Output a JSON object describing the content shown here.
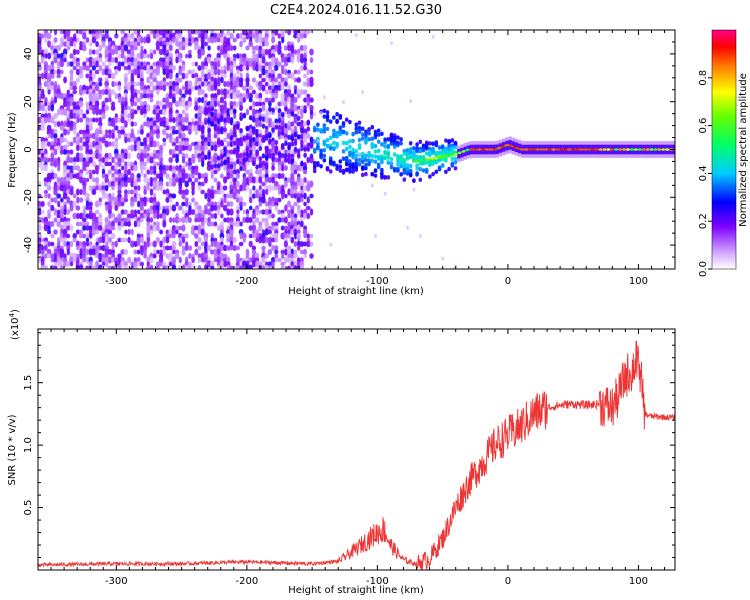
{
  "title": "C2E4.2024.016.11.52.G30",
  "chart_data": [
    {
      "type": "heatmap",
      "xlabel": "Height of straight line (km)",
      "ylabel": "Frequency (Hz)",
      "xlim": [
        -360,
        128
      ],
      "ylim": [
        -50,
        50
      ],
      "xticks": [
        -300,
        -200,
        -100,
        0,
        100
      ],
      "yticks": [
        -40,
        -20,
        0,
        20,
        40
      ],
      "colorbar": {
        "label": "Normalized spectral amplitude",
        "range": [
          0,
          1
        ],
        "ticks": [
          0.0,
          0.2,
          0.4,
          0.6,
          0.8
        ]
      },
      "ridge": {
        "x": [
          -150,
          -130,
          -110,
          -90,
          -70,
          -60,
          -50,
          -40,
          -30,
          -20,
          -10,
          0,
          10,
          30,
          60,
          90,
          128
        ],
        "frequency": [
          5,
          3,
          0,
          -3,
          -5,
          -4,
          -3,
          -2,
          0,
          0,
          0,
          2,
          0,
          0,
          0,
          0,
          0
        ]
      }
    },
    {
      "type": "line",
      "xlabel": "Height of straight line (km)",
      "ylabel": "SNR (10 * v/v)",
      "y_multiplier_label": "(x10",
      "y_multiplier_exp": "4",
      "xlim": [
        -360,
        128
      ],
      "ylim": [
        0,
        19300
      ],
      "xticks": [
        -300,
        -200,
        -100,
        0,
        100
      ],
      "yticks": [
        5000,
        10000,
        15000
      ],
      "ytick_labels": [
        "0.5",
        "1.0",
        "1.5"
      ],
      "line_color": "#ee3333",
      "series": [
        {
          "x": [
            -360,
            -300,
            -250,
            -200,
            -150,
            -130,
            -120,
            -110,
            -100,
            -95,
            -90,
            -80,
            -70,
            -60,
            -50,
            -40,
            -30,
            -20,
            -10,
            0,
            10,
            20,
            30,
            40,
            50,
            60,
            70,
            80,
            85,
            90,
            95,
            100,
            105,
            110,
            128
          ],
          "values": [
            400,
            500,
            500,
            650,
            500,
            700,
            1400,
            2200,
            3000,
            3300,
            2000,
            800,
            500,
            900,
            2500,
            5000,
            7000,
            8500,
            10000,
            10800,
            11500,
            12500,
            13000,
            13200,
            13300,
            13200,
            13300,
            13000,
            14000,
            15500,
            16000,
            17000,
            12500,
            12300,
            12200
          ]
        }
      ]
    }
  ]
}
